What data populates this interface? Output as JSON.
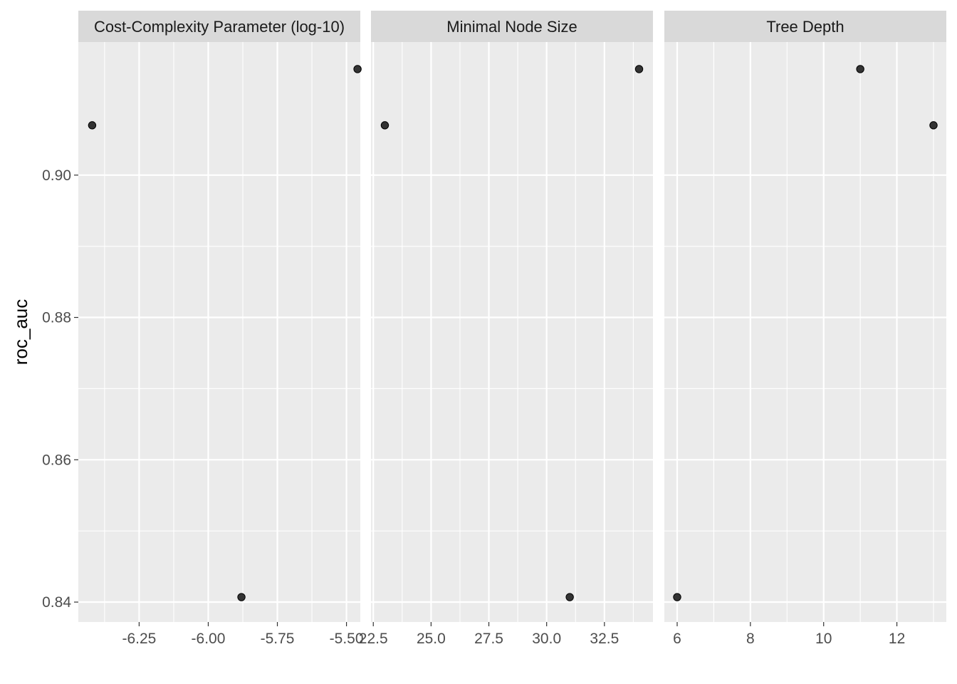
{
  "chart_data": {
    "type": "scatter",
    "ylabel": "roc_auc",
    "xlabel": "",
    "ylim": [
      0.8372,
      0.9187
    ],
    "y_ticks": [
      0.84,
      0.86,
      0.88,
      0.9
    ],
    "y_tick_labels": [
      "0.84",
      "0.86",
      "0.88",
      "0.90"
    ],
    "grid": true,
    "point_color": "#333333",
    "panel_bg": "#ebebeb",
    "strip_bg": "#d9d9d9",
    "panels": [
      {
        "title": "Cost-Complexity Parameter (log-10)",
        "xlim": [
          -6.47,
          -5.45
        ],
        "x_ticks": [
          -6.25,
          -6.0,
          -5.75,
          -5.5
        ],
        "x_tick_labels": [
          "-6.25",
          "-6.00",
          "-5.75",
          "-5.50"
        ],
        "points": [
          {
            "x": -6.42,
            "y": 0.907
          },
          {
            "x": -5.88,
            "y": 0.8407
          },
          {
            "x": -5.46,
            "y": 0.9149
          }
        ]
      },
      {
        "title": "Minimal Node Size",
        "xlim": [
          22.4,
          34.6
        ],
        "x_ticks": [
          22.5,
          25.0,
          27.5,
          30.0,
          32.5
        ],
        "x_tick_labels": [
          "22.5",
          "25.0",
          "27.5",
          "30.0",
          "32.5"
        ],
        "points": [
          {
            "x": 23,
            "y": 0.907
          },
          {
            "x": 31,
            "y": 0.8407
          },
          {
            "x": 34,
            "y": 0.9149
          }
        ]
      },
      {
        "title": "Tree Depth",
        "xlim": [
          5.65,
          13.35
        ],
        "x_ticks": [
          6,
          8,
          10,
          12
        ],
        "x_tick_labels": [
          "6",
          "8",
          "10",
          "12"
        ],
        "points": [
          {
            "x": 6,
            "y": 0.8407
          },
          {
            "x": 11,
            "y": 0.9149
          },
          {
            "x": 13,
            "y": 0.907
          }
        ]
      }
    ]
  }
}
